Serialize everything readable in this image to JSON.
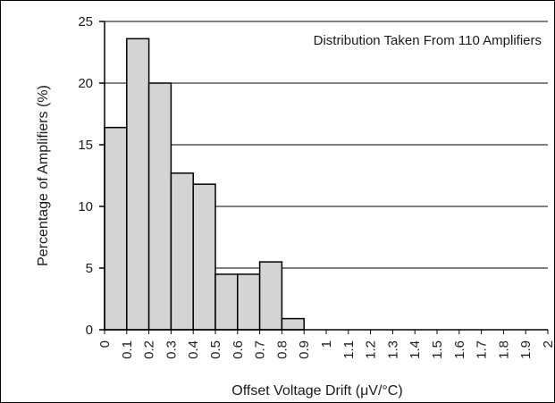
{
  "chart_data": {
    "type": "bar",
    "title": "",
    "annotation": "Distribution Taken From 110 Amplifiers",
    "xlabel": "Offset Voltage Drift (μV/°C)",
    "ylabel": "Percentage of Amplifiers (%)",
    "ylim": [
      0,
      25
    ],
    "yticks": [
      "0",
      "5",
      "10",
      "15",
      "20",
      "25"
    ],
    "xticks": [
      "0",
      "0.1",
      "0.2",
      "0.3",
      "0.4",
      "0.5",
      "0.6",
      "0.7",
      "0.8",
      "0.9",
      "1",
      "1.1",
      "1.2",
      "1.3",
      "1.4",
      "1.5",
      "1.6",
      "1.7",
      "1.8",
      "1.9",
      "2"
    ],
    "categories": [
      "0.1",
      "0.2",
      "0.3",
      "0.4",
      "0.5",
      "0.6",
      "0.7",
      "0.8",
      "0.9"
    ],
    "values": [
      16.4,
      23.6,
      20.0,
      12.7,
      11.8,
      4.5,
      4.5,
      5.5,
      0.9
    ],
    "grid": true,
    "colors": {
      "bar_fill": "#d4d4d4",
      "bar_stroke": "#000000",
      "grid": "#000000"
    }
  }
}
